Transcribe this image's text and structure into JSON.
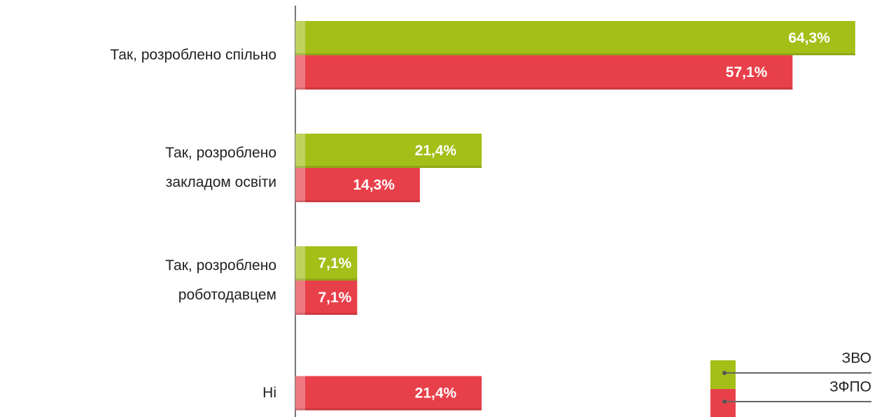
{
  "chart_data": {
    "type": "bar",
    "orientation": "horizontal",
    "categories": [
      "Так, розроблено спільно",
      "Так, розроблено\nзакладом освіти",
      "Так, розроблено\nроботодавцем",
      "Ні"
    ],
    "series": [
      {
        "name": "ЗВО",
        "color": "#a3bf18",
        "values": [
          64.3,
          21.4,
          7.1,
          null
        ],
        "value_labels": [
          "64,3%",
          "21,4%",
          "7,1%",
          null
        ]
      },
      {
        "name": "ЗФПО",
        "color": "#e8404a",
        "values": [
          57.1,
          14.3,
          7.1,
          21.4
        ],
        "value_labels": [
          "57,1%",
          "14,3%",
          "7,1%",
          "21,4%"
        ]
      }
    ],
    "legend": "bottom-right"
  }
}
